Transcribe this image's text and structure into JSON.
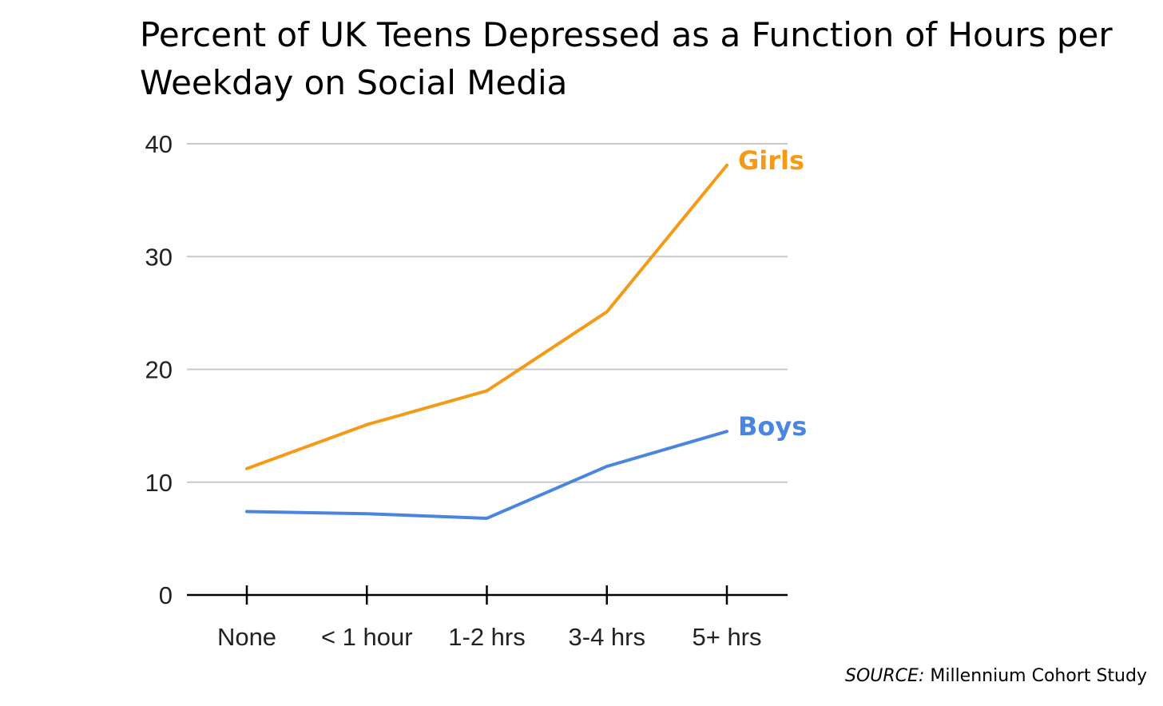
{
  "chart_data": {
    "type": "line",
    "title": "Percent of UK Teens Depressed as a Function of Hours per Weekday on Social Media",
    "categories": [
      "None",
      "< 1 hour",
      "1-2 hrs",
      "3-4 hrs",
      "5+ hrs"
    ],
    "y_ticks": [
      "0",
      "10",
      "20",
      "30",
      "40"
    ],
    "ylim": [
      0,
      40
    ],
    "grid": true,
    "series": [
      {
        "name": "Girls",
        "color": "#f59a17",
        "values": [
          11.2,
          15.1,
          18.1,
          25.1,
          38.1
        ]
      },
      {
        "name": "Boys",
        "color": "#4a86df",
        "values": [
          7.4,
          7.2,
          6.8,
          11.4,
          14.5
        ]
      }
    ]
  },
  "source": {
    "prefix": "SOURCE:",
    "text": "Millennium Cohort Study"
  }
}
